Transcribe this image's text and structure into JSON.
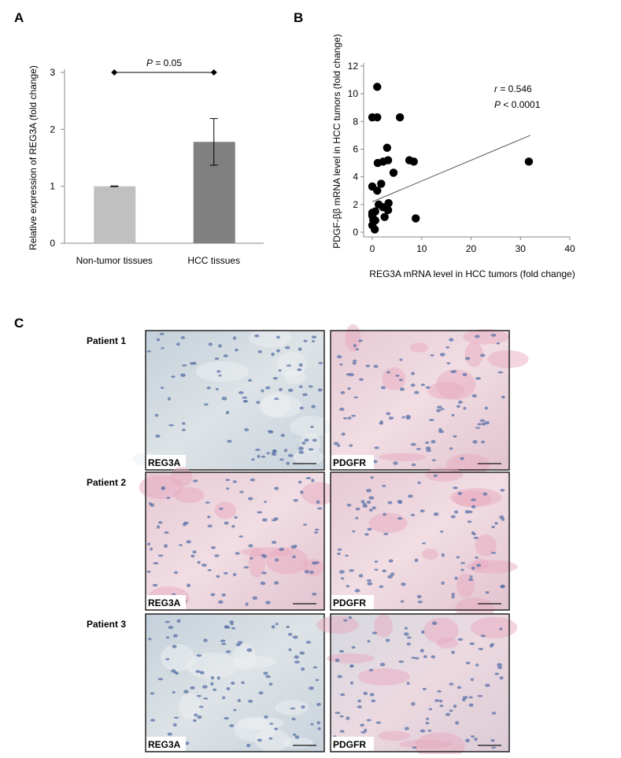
{
  "chart_data": [
    {
      "type": "bar",
      "panel": "A",
      "ylabel": "Relative expression of REG3A (fold change)",
      "categories": [
        "Non-tumor tissues",
        "HCC tissues"
      ],
      "values": [
        1.0,
        1.78
      ],
      "errors": [
        0.005,
        0.41
      ],
      "colors": [
        "#c0c0c0",
        "#808080"
      ],
      "ylim": [
        0,
        3
      ],
      "yticks": [
        0,
        1,
        2,
        3
      ],
      "annotation": {
        "italic": "P",
        "text": " = 0.05",
        "y": 3
      }
    },
    {
      "type": "scatter",
      "panel": "B",
      "xlabel": "REG3A mRNA level in HCC tumors (fold change)",
      "ylabel": "PDGF-ββ mRNA level in HCC tumors (fold change)",
      "color": "#000000",
      "x": [
        1,
        0,
        1,
        5.6,
        3,
        1.1,
        2.2,
        3.2,
        7.5,
        8.4,
        31.7,
        4.3,
        0,
        1.8,
        1,
        1.3,
        2.2,
        3.3,
        3.2,
        2.5,
        0.6,
        8.8,
        0,
        0.2,
        0,
        0.5,
        0.6,
        0
      ],
      "y": [
        10.5,
        8.3,
        8.3,
        8.3,
        6.1,
        5,
        5.1,
        5.2,
        5.2,
        5.1,
        5.1,
        4.3,
        3.3,
        3.5,
        3,
        2,
        1.8,
        2.1,
        1.6,
        1.1,
        1.5,
        1,
        1.4,
        0.9,
        0.5,
        0.2,
        0.85,
        1.2
      ],
      "trendline": {
        "x": [
          0,
          32
        ],
        "y": [
          2.2,
          7.0
        ]
      },
      "xlim": [
        0,
        40
      ],
      "xticks": [
        0,
        10,
        20,
        30,
        40
      ],
      "ylim": [
        0,
        12
      ],
      "yticks": [
        0,
        2,
        4,
        6,
        8,
        10,
        12
      ],
      "stats": [
        {
          "italic": "r",
          "text": " = 0.546"
        },
        {
          "italic": "P",
          "text": " < 0.0001"
        }
      ]
    }
  ],
  "histology": {
    "panel": "C",
    "rows": [
      {
        "patient": "Patient 1",
        "images": [
          "REG3A",
          "PDGFR"
        ]
      },
      {
        "patient": "Patient 2",
        "images": [
          "REG3A",
          "PDGFR"
        ]
      },
      {
        "patient": "Patient 3",
        "images": [
          "REG3A",
          "PDGFR"
        ]
      }
    ]
  }
}
